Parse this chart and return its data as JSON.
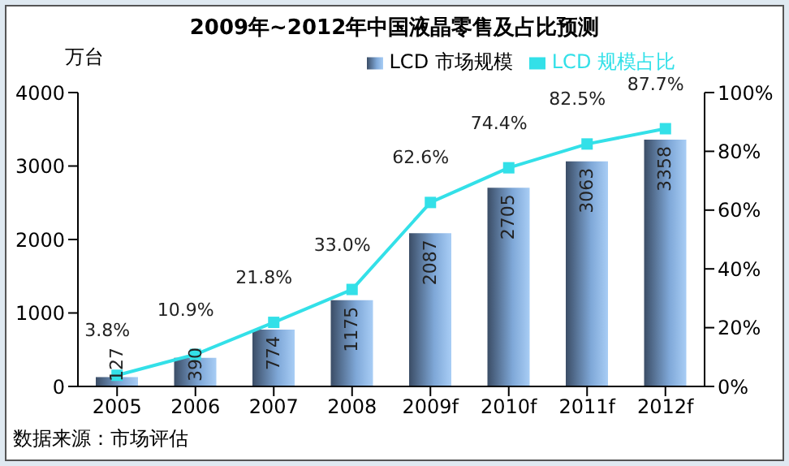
{
  "chart_data": {
    "type": "bar",
    "title": "2009年~2012年中国液晶零售及占比预测",
    "ylabel": "万台",
    "annotations": [
      "数据来源：市场评估"
    ],
    "categories": [
      "2005",
      "2006",
      "2007",
      "2008",
      "2009f",
      "2010f",
      "2011f",
      "2012f"
    ],
    "series": [
      {
        "name": "LCD 市场规模",
        "color": "#7fa8d8",
        "values": [
          127,
          390,
          774,
          1175,
          2087,
          2705,
          3063,
          3358
        ],
        "value_labels": [
          "127",
          "390",
          "774",
          "1175",
          "2087",
          "2705",
          "3063",
          "3358"
        ]
      },
      {
        "name": "LCD 规模占比",
        "type": "line",
        "axis": "y2",
        "color": "#33e0e8",
        "marker": "square",
        "values": [
          3.8,
          10.9,
          21.8,
          33.0,
          62.6,
          74.4,
          82.5,
          87.7
        ],
        "value_labels": [
          "3.8%",
          "10.9%",
          "21.8%",
          "33.0%",
          "62.6%",
          "74.4%",
          "82.5%",
          "87.7%"
        ]
      }
    ],
    "ylim": [
      0,
      4000
    ],
    "yticks": [
      0,
      1000,
      2000,
      3000,
      4000
    ],
    "y2lim": [
      0,
      100
    ],
    "y2ticks": [
      {
        "value": 0,
        "label": "0%"
      },
      {
        "value": 20,
        "label": "20%"
      },
      {
        "value": 40,
        "label": "40%"
      },
      {
        "value": 60,
        "label": "60%"
      },
      {
        "value": 80,
        "label": "80%"
      },
      {
        "value": 100,
        "label": "100%"
      }
    ],
    "grid": false,
    "legend": "top right"
  }
}
